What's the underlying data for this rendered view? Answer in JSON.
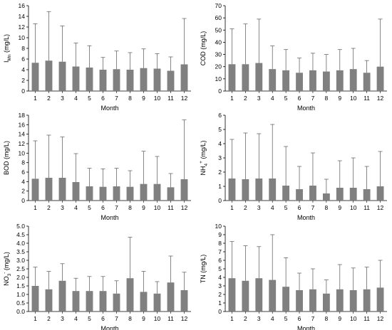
{
  "figure": {
    "colors": {
      "bar": "#808080",
      "axis": "#000000",
      "errorbar": "#555555"
    }
  },
  "chart_data": [
    {
      "type": "bar",
      "ylabel": "I_Mn (mg/L)",
      "ylabel_main": "I",
      "ylabel_sub": "Mn",
      "ylabel_sup": "",
      "ylabel_rest": " (mg/L)",
      "xlabel": "Month",
      "categories": [
        "1",
        "2",
        "3",
        "4",
        "5",
        "6",
        "7",
        "8",
        "9",
        "10",
        "11",
        "12"
      ],
      "values": [
        5.3,
        5.7,
        5.5,
        4.6,
        4.4,
        4.0,
        4.1,
        4.0,
        4.3,
        4.2,
        3.8,
        5.0
      ],
      "errors_upper": [
        12.6,
        14.9,
        12.2,
        9.0,
        8.5,
        6.3,
        7.5,
        7.2,
        7.9,
        7.0,
        6.4,
        13.6
      ],
      "ylim": [
        0,
        16
      ],
      "yticks": [
        "0",
        "2",
        "4",
        "6",
        "8",
        "10",
        "12",
        "14",
        "16"
      ]
    },
    {
      "type": "bar",
      "ylabel": "COD (mg/L)",
      "ylabel_main": "COD (mg/L)",
      "ylabel_sub": "",
      "ylabel_sup": "",
      "ylabel_rest": "",
      "xlabel": "Month",
      "categories": [
        "1",
        "2",
        "3",
        "4",
        "5",
        "6",
        "7",
        "8",
        "9",
        "10",
        "11",
        "12"
      ],
      "values": [
        22,
        22,
        23,
        18,
        17,
        15,
        17,
        16,
        17,
        18,
        15,
        20
      ],
      "errors_upper": [
        51,
        55,
        59,
        37,
        34,
        27,
        31,
        30,
        34,
        35,
        25,
        59
      ],
      "ylim": [
        0,
        70
      ],
      "yticks": [
        "0",
        "10",
        "20",
        "30",
        "40",
        "50",
        "60",
        "70"
      ]
    },
    {
      "type": "bar",
      "ylabel": "BOD (mg/L)",
      "ylabel_main": "BOD (mg/L)",
      "ylabel_sub": "",
      "ylabel_sup": "",
      "ylabel_rest": "",
      "xlabel": "Month",
      "categories": [
        "1",
        "2",
        "3",
        "4",
        "5",
        "6",
        "7",
        "8",
        "9",
        "10",
        "11",
        "12"
      ],
      "values": [
        4.6,
        4.8,
        4.8,
        3.9,
        3.0,
        2.9,
        3.0,
        2.9,
        3.5,
        3.5,
        2.8,
        4.5
      ],
      "errors_upper": [
        12.6,
        13.8,
        13.4,
        9.9,
        6.8,
        6.7,
        6.8,
        6.3,
        10.4,
        9.3,
        5.7,
        17.0
      ],
      "ylim": [
        0,
        18
      ],
      "yticks": [
        "0",
        "2",
        "4",
        "6",
        "8",
        "10",
        "12",
        "14",
        "16",
        "18"
      ]
    },
    {
      "type": "bar",
      "ylabel": "NH4+ (mg/L)",
      "ylabel_main": "NH",
      "ylabel_sub": "4",
      "ylabel_sup": "+",
      "ylabel_rest": " (mg/L)",
      "xlabel": "Month",
      "categories": [
        "1",
        "2",
        "3",
        "4",
        "5",
        "6",
        "7",
        "8",
        "9",
        "10",
        "11",
        "12"
      ],
      "values": [
        1.55,
        1.5,
        1.55,
        1.55,
        1.05,
        0.8,
        1.05,
        0.5,
        0.9,
        0.9,
        0.8,
        1.0
      ],
      "errors_upper": [
        4.3,
        4.75,
        4.7,
        5.35,
        3.8,
        2.4,
        3.35,
        1.5,
        2.8,
        3.0,
        2.4,
        3.45
      ],
      "ylim": [
        0,
        6
      ],
      "yticks": [
        "0",
        "1",
        "2",
        "3",
        "4",
        "5",
        "6"
      ]
    },
    {
      "type": "bar",
      "ylabel": "NO3- (mg/L)",
      "ylabel_main": "NO",
      "ylabel_sub": "3",
      "ylabel_sup": "-",
      "ylabel_rest": " (mg/L)",
      "xlabel": "Month",
      "categories": [
        "1",
        "2",
        "3",
        "4",
        "5",
        "6",
        "7",
        "8",
        "9",
        "10",
        "11",
        "12"
      ],
      "values": [
        1.5,
        1.3,
        1.8,
        1.2,
        1.2,
        1.2,
        1.05,
        1.95,
        1.15,
        1.05,
        1.7,
        1.25
      ],
      "errors_upper": [
        2.6,
        2.35,
        2.8,
        1.95,
        2.05,
        2.05,
        1.8,
        4.35,
        2.35,
        1.75,
        3.25,
        2.3
      ],
      "ylim": [
        0,
        5
      ],
      "yticks": [
        "0.0",
        "0.5",
        "1.0",
        "1.5",
        "2.0",
        "2.5",
        "3.0",
        "3.5",
        "4.0",
        "4.5",
        "5.0"
      ]
    },
    {
      "type": "bar",
      "ylabel": "TN (mg/L)",
      "ylabel_main": "TN (mg/L)",
      "ylabel_sub": "",
      "ylabel_sup": "",
      "ylabel_rest": "",
      "xlabel": "Month",
      "categories": [
        "1",
        "2",
        "3",
        "4",
        "5",
        "6",
        "7",
        "8",
        "9",
        "10",
        "11",
        "12"
      ],
      "values": [
        3.9,
        3.6,
        3.9,
        3.7,
        2.9,
        2.5,
        2.6,
        2.1,
        2.6,
        2.5,
        2.6,
        2.8
      ],
      "errors_upper": [
        8.2,
        7.7,
        7.6,
        9.0,
        6.3,
        4.5,
        5.0,
        3.7,
        5.5,
        5.1,
        5.2,
        6.0
      ],
      "ylim": [
        0,
        10
      ],
      "yticks": [
        "0",
        "1",
        "2",
        "3",
        "4",
        "5",
        "6",
        "7",
        "8",
        "9",
        "10"
      ]
    }
  ]
}
